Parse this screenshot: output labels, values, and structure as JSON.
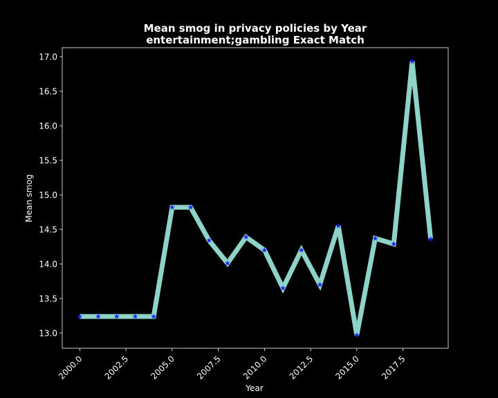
{
  "chart_data": {
    "type": "line",
    "title_line1": "Mean smog in privacy policies by Year",
    "title_line2": "entertainment;gambling Exact Match",
    "xlabel": "Year",
    "ylabel": "Mean smog",
    "xlim": [
      1999.05,
      2019.95
    ],
    "ylim": [
      12.78,
      17.13
    ],
    "x_ticks": [
      2000.0,
      2002.5,
      2005.0,
      2007.5,
      2010.0,
      2012.5,
      2015.0,
      2017.5
    ],
    "x_tick_labels": [
      "2000.0",
      "2002.5",
      "2005.0",
      "2007.5",
      "2010.0",
      "2012.5",
      "2015.0",
      "2017.5"
    ],
    "y_ticks": [
      13.0,
      13.5,
      14.0,
      14.5,
      15.0,
      15.5,
      16.0,
      16.5,
      17.0
    ],
    "y_tick_labels": [
      "13.0",
      "13.5",
      "14.0",
      "14.5",
      "15.0",
      "15.5",
      "16.0",
      "16.5",
      "17.0"
    ],
    "grid": false,
    "series": [
      {
        "x": [
          2000,
          2001,
          2002,
          2003,
          2004,
          2005,
          2006,
          2007,
          2008,
          2009,
          2010,
          2011,
          2012,
          2013,
          2014,
          2015,
          2016,
          2017,
          2018,
          2019
        ],
        "values": [
          13.24,
          13.24,
          13.24,
          13.24,
          13.24,
          14.82,
          14.82,
          14.34,
          14.01,
          14.39,
          14.2,
          13.65,
          14.2,
          13.7,
          14.55,
          12.97,
          14.37,
          14.29,
          16.93,
          14.36
        ],
        "line_color": "#8dd3c7",
        "marker_color": "#1f1fff",
        "marker": "star"
      }
    ]
  }
}
